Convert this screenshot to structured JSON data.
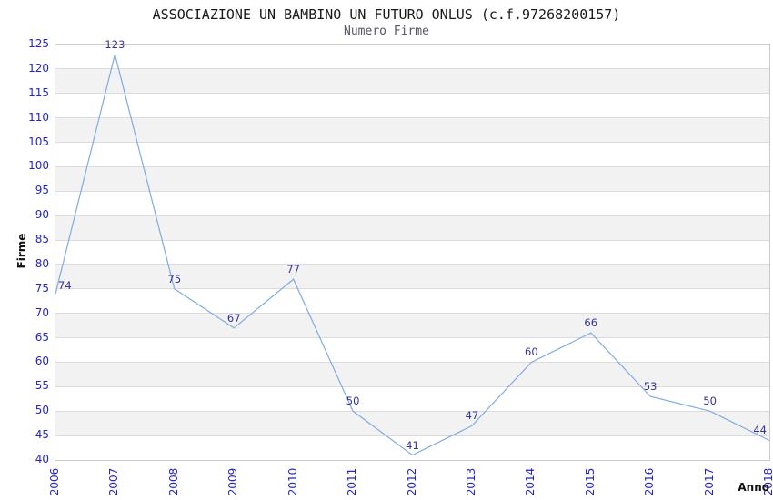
{
  "header": {
    "title": "ASSOCIAZIONE UN BAMBINO UN FUTURO ONLUS (c.f.97268200157)",
    "subtitle": "Numero Firme"
  },
  "chart_data": {
    "type": "line",
    "title": "ASSOCIAZIONE UN BAMBINO UN FUTURO ONLUS (c.f.97268200157)",
    "subtitle": "Numero Firme",
    "xlabel": "Anno",
    "ylabel": "Firme",
    "categories": [
      "2006",
      "2007",
      "2008",
      "2009",
      "2010",
      "2011",
      "2012",
      "2013",
      "2014",
      "2015",
      "2016",
      "2017",
      "2018"
    ],
    "series": [
      {
        "name": "Numero Firme",
        "values": [
          74,
          123,
          75,
          67,
          77,
          50,
          41,
          47,
          60,
          66,
          53,
          50,
          44
        ]
      }
    ],
    "ylim": [
      40,
      125
    ],
    "ytick_step": 5,
    "grid": true,
    "banded_background": true,
    "data_labels_visible": true,
    "legend_position": "none",
    "colors": {
      "line": "#7fabe3",
      "axis_tick_label": "#2424cc",
      "data_label": "#333399",
      "band_fill": "#f2f2f2",
      "gridline": "#dcdcdc",
      "plot_border": "#cbcbcb",
      "title": "#1a1a1a",
      "subtitle": "#555566",
      "axis_title": "#111111"
    }
  }
}
